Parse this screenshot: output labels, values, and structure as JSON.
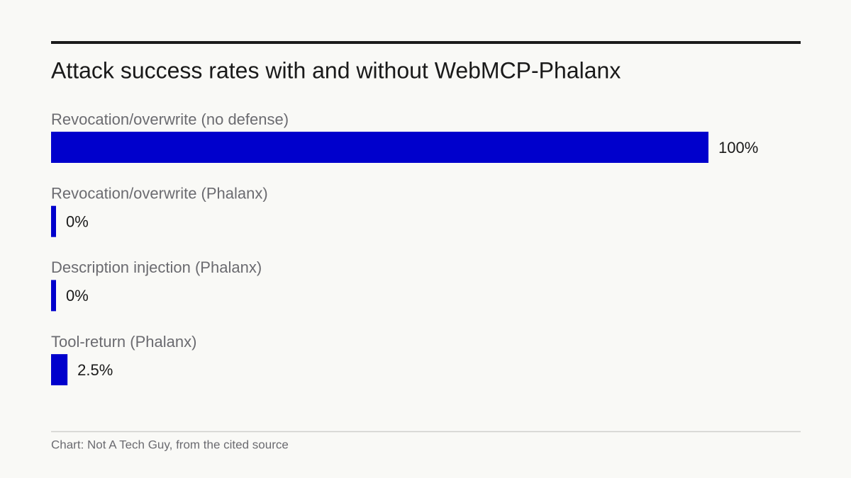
{
  "chart_data": {
    "type": "hbar",
    "title": "Attack success rates with and without WebMCP-Phalanx",
    "categories": [
      "Revocation/overwrite (no defense)",
      "Revocation/overwrite (Phalanx)",
      "Description injection (Phalanx)",
      "Tool-return (Phalanx)"
    ],
    "values": [
      100,
      0,
      0,
      2.5
    ],
    "value_labels": [
      "100%",
      "0%",
      "0%",
      "2.5%"
    ],
    "color": "#0000cc",
    "xlim": [
      0,
      100
    ],
    "source": "Chart: Not A Tech Guy, from the cited source"
  }
}
